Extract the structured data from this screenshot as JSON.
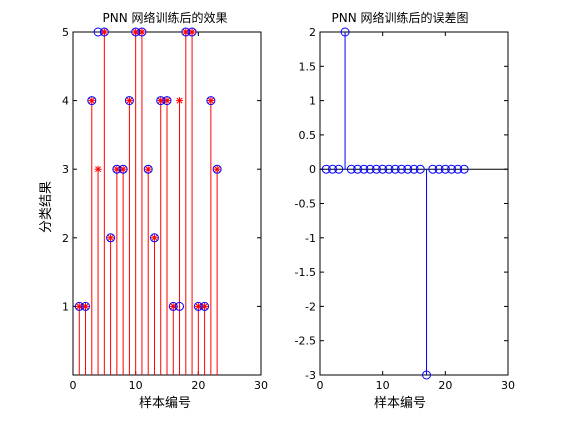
{
  "chart_data": [
    {
      "type": "stem",
      "title": "PNN 网络训练后的效果",
      "xlabel": "样本编号",
      "ylabel": "分类结果",
      "xlim": [
        0,
        30
      ],
      "ylim": [
        0,
        5
      ],
      "xticks": [
        "0",
        "10",
        "20",
        "30"
      ],
      "yticks": [
        "1",
        "2",
        "3",
        "4",
        "5"
      ],
      "grid": false,
      "series": [
        {
          "marker": "star",
          "stem_color": "#ff0000",
          "marker_color": "#ff0000",
          "x": [
            1,
            2,
            3,
            4,
            5,
            6,
            7,
            8,
            9,
            10,
            11,
            12,
            13,
            14,
            15,
            16,
            17,
            18,
            19,
            20,
            21,
            22,
            23
          ],
          "values": [
            1,
            1,
            4,
            3,
            5,
            2,
            3,
            3,
            4,
            5,
            5,
            3,
            2,
            4,
            4,
            1,
            4,
            5,
            5,
            1,
            1,
            4,
            3
          ]
        },
        {
          "marker": "circle",
          "marker_color": "#0000ff",
          "x": [
            1,
            2,
            3,
            4,
            5,
            6,
            7,
            8,
            9,
            10,
            11,
            12,
            13,
            14,
            15,
            16,
            17,
            18,
            19,
            20,
            21,
            22,
            23
          ],
          "values": [
            1,
            1,
            4,
            5,
            5,
            2,
            3,
            3,
            4,
            5,
            5,
            3,
            2,
            4,
            4,
            1,
            1,
            5,
            5,
            1,
            1,
            4,
            3
          ]
        }
      ]
    },
    {
      "type": "stem",
      "title": "PNN 网络训练后的误差图",
      "xlabel": "样本编号",
      "ylabel": "",
      "xlim": [
        0,
        30
      ],
      "ylim": [
        -3,
        2
      ],
      "xticks": [
        "0",
        "10",
        "20",
        "30"
      ],
      "yticks": [
        "-3",
        "-2.5",
        "-2",
        "-1.5",
        "-1",
        "-0.5",
        "0",
        "0.5",
        "1",
        "1.5",
        "2"
      ],
      "grid": false,
      "baseline": 0,
      "series": [
        {
          "marker": "circle",
          "stem_color": "#0000ff",
          "marker_color": "#0000ff",
          "x": [
            1,
            2,
            3,
            4,
            5,
            6,
            7,
            8,
            9,
            10,
            11,
            12,
            13,
            14,
            15,
            16,
            17,
            18,
            19,
            20,
            21,
            22,
            23
          ],
          "values": [
            0,
            0,
            0,
            2,
            0,
            0,
            0,
            0,
            0,
            0,
            0,
            0,
            0,
            0,
            0,
            0,
            -3,
            0,
            0,
            0,
            0,
            0,
            0
          ]
        }
      ]
    }
  ]
}
